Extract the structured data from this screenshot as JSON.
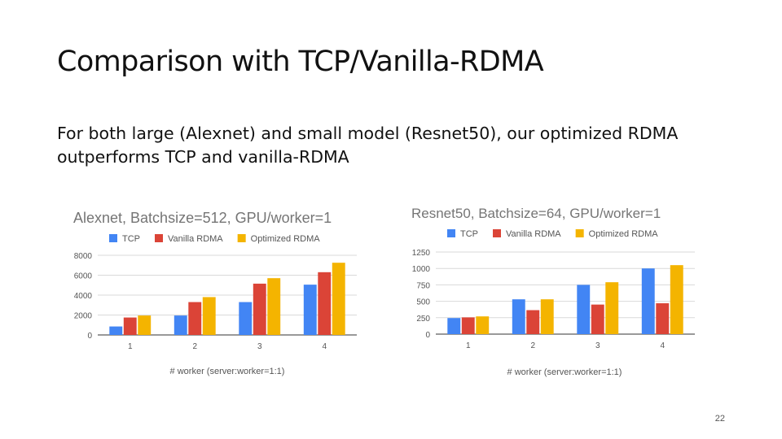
{
  "slide": {
    "title": "Comparison with TCP/Vanilla-RDMA",
    "body": "For both large (Alexnet) and small model (Resnet50), our optimized RDMA outperforms TCP and vanilla-RDMA",
    "page_number": "22"
  },
  "colors": {
    "tcp": "#4285F4",
    "vanilla": "#DB4437",
    "optimized": "#F4B400"
  },
  "chart_data": [
    {
      "type": "bar",
      "title": "Alexnet, Batchsize=512, GPU/worker=1",
      "xlabel": "# worker (server:worker=1:1)",
      "ylabel": "",
      "categories": [
        "1",
        "2",
        "3",
        "4"
      ],
      "yticks": [
        0,
        2000,
        4000,
        6000,
        8000
      ],
      "ylim": [
        0,
        8000
      ],
      "legend_position": "top",
      "grid": true,
      "series": [
        {
          "name": "TCP",
          "color": "#4285F4",
          "values": [
            850,
            1950,
            3300,
            5050
          ]
        },
        {
          "name": "Vanilla RDMA",
          "color": "#DB4437",
          "values": [
            1750,
            3300,
            5150,
            6300
          ]
        },
        {
          "name": "Optimized RDMA",
          "color": "#F4B400",
          "values": [
            1950,
            3800,
            5700,
            7250
          ]
        }
      ]
    },
    {
      "type": "bar",
      "title": "Resnet50, Batchsize=64, GPU/worker=1",
      "xlabel": "# worker (server:worker=1:1)",
      "ylabel": "",
      "categories": [
        "1",
        "2",
        "3",
        "4"
      ],
      "yticks": [
        0,
        250,
        500,
        750,
        1000,
        1250
      ],
      "ylim": [
        0,
        1250
      ],
      "legend_position": "top",
      "grid": true,
      "series": [
        {
          "name": "TCP",
          "color": "#4285F4",
          "values": [
            245,
            530,
            750,
            1000
          ]
        },
        {
          "name": "Vanilla RDMA",
          "color": "#DB4437",
          "values": [
            255,
            365,
            450,
            470
          ]
        },
        {
          "name": "Optimized RDMA",
          "color": "#F4B400",
          "values": [
            270,
            530,
            790,
            1050
          ]
        }
      ]
    }
  ]
}
